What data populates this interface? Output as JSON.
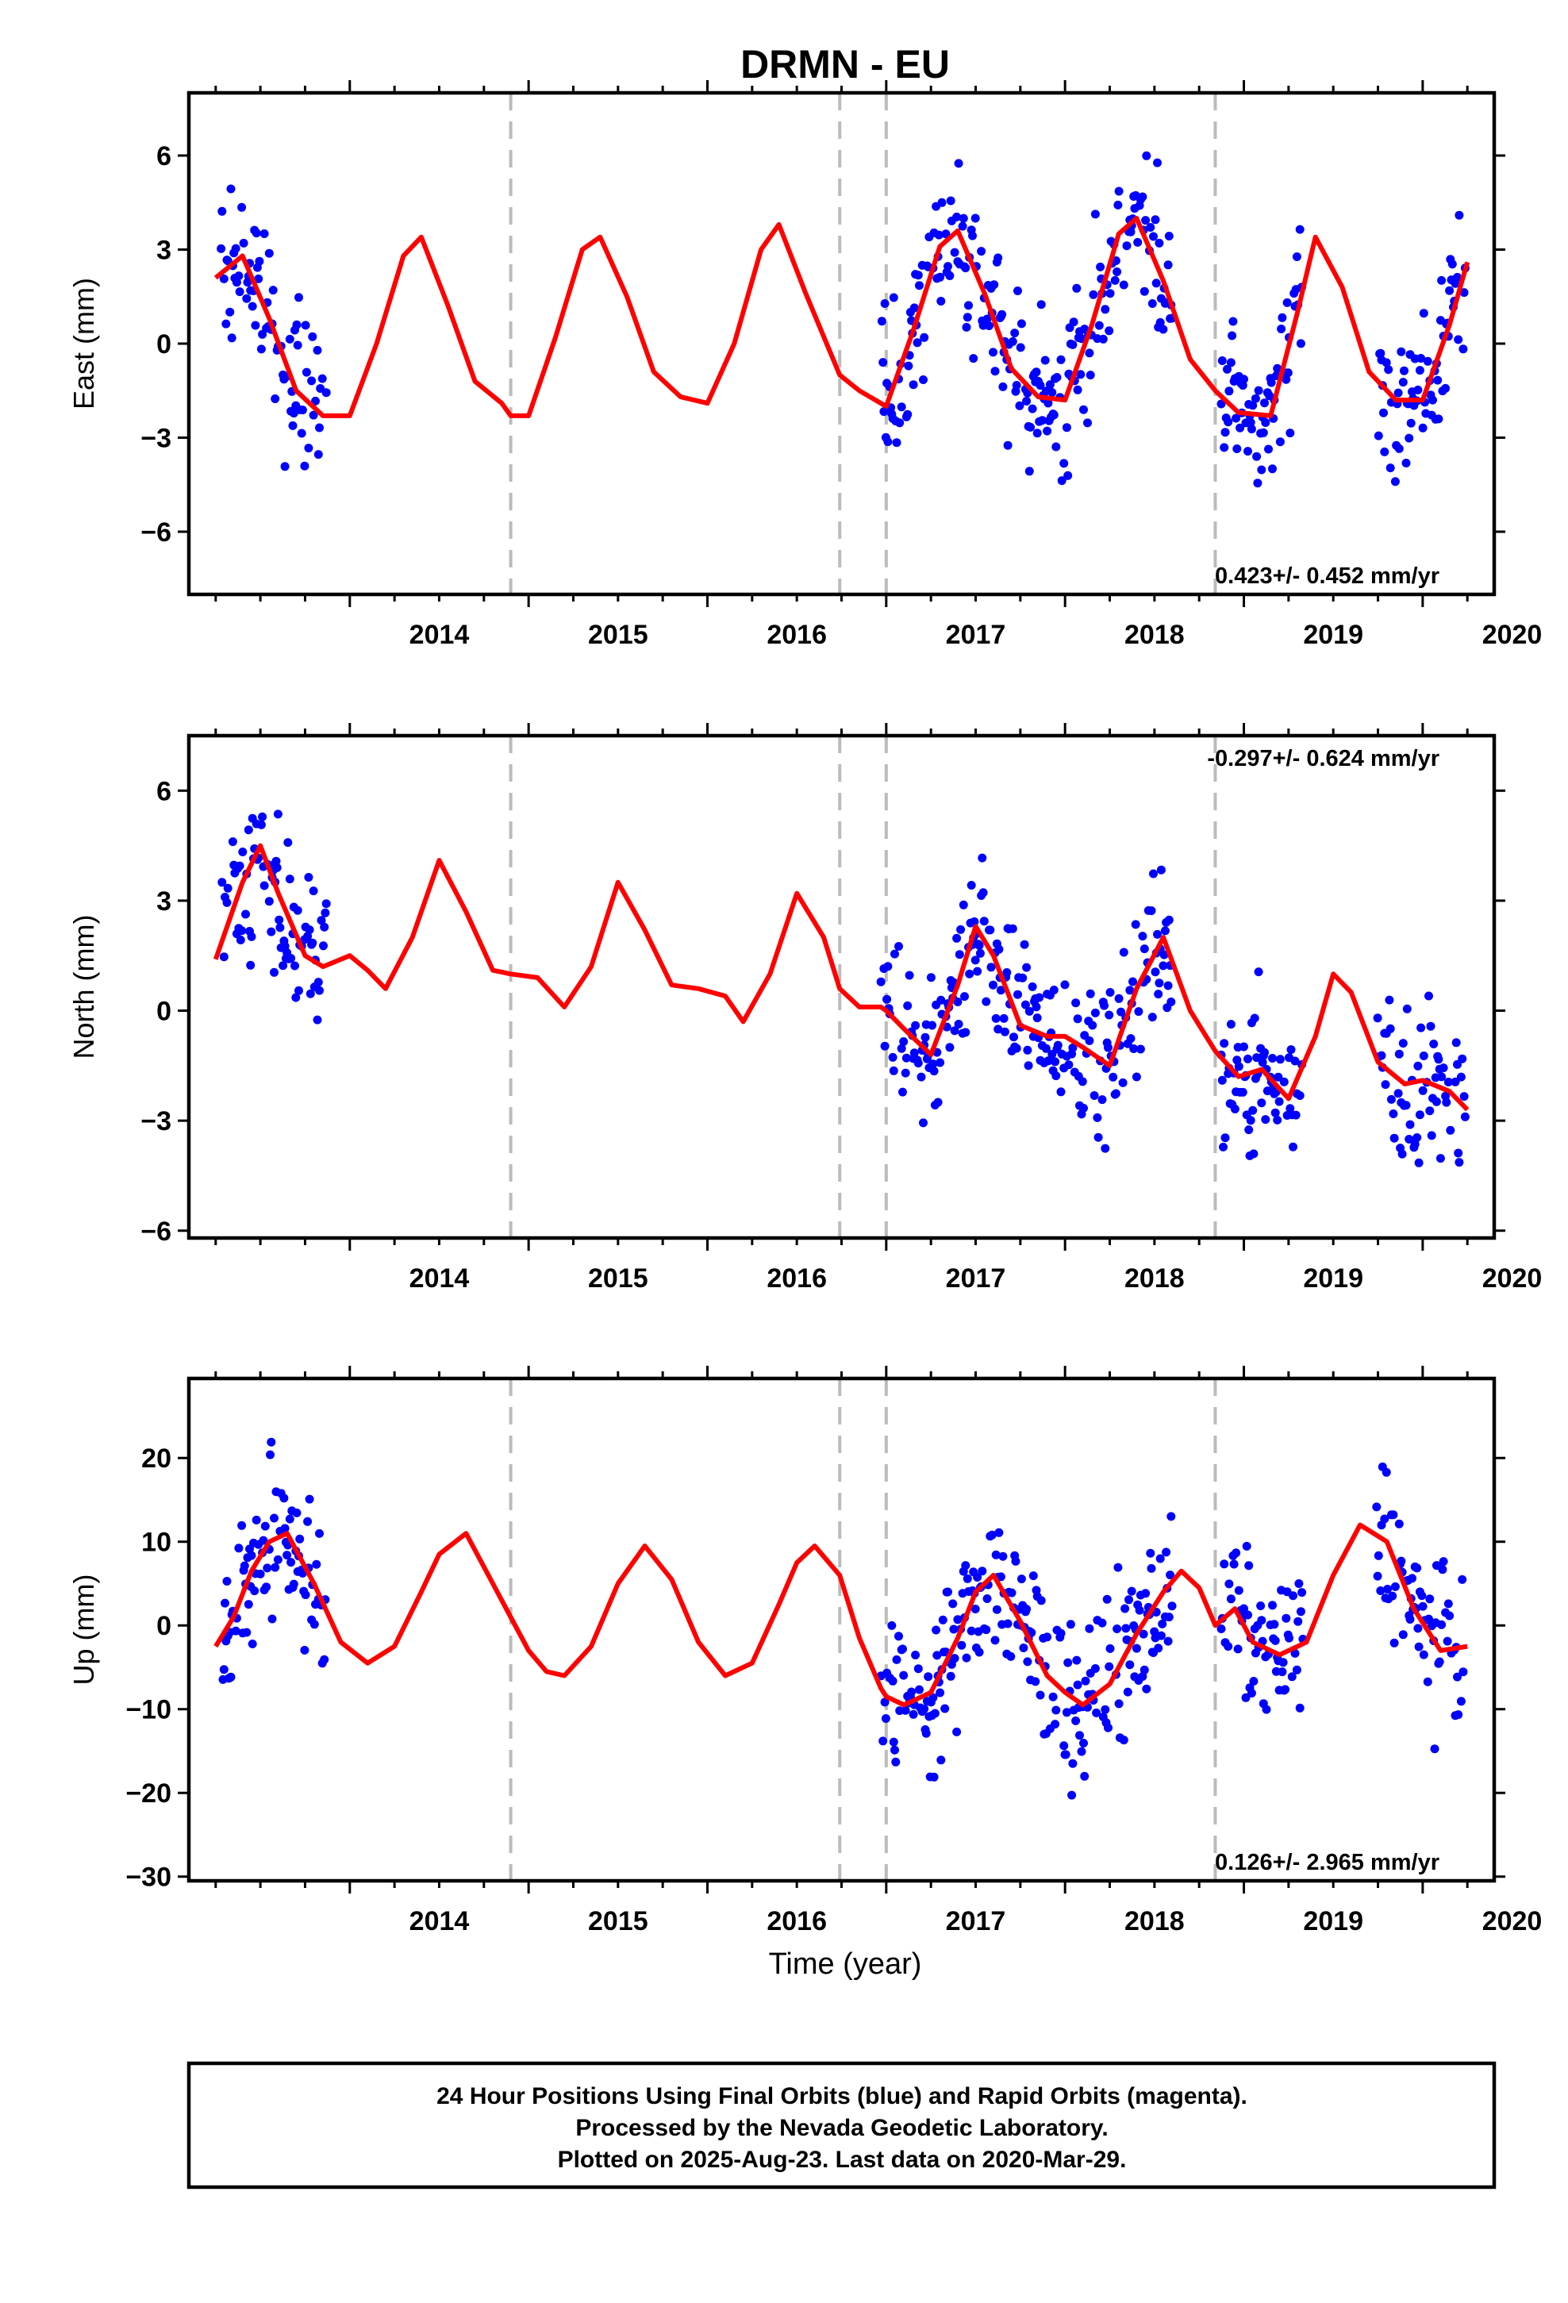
{
  "title": "DRMN - EU",
  "xlabel": "Time (year)",
  "footer": [
    "24 Hour Positions Using Final Orbits (blue) and Rapid Orbits (magenta).",
    "Processed by the Nevada Geodetic Laboratory.",
    "Plotted on 2025-Aug-23. Last data on 2020-Mar-29."
  ],
  "colors": {
    "points": "#0000ff",
    "model": "#ff0000",
    "offsets": "#bbbbbb"
  },
  "chart_data": [
    {
      "type": "scatter",
      "component": "East",
      "ylabel": "East (mm)",
      "rate_text": "0.423+/- 0.452 mm/yr",
      "xlim": [
        2013.1,
        2020.4
      ],
      "ylim": [
        -8,
        8
      ],
      "yticks": [
        6,
        3,
        0,
        -3,
        -6
      ],
      "yticklabels": [
        "6",
        "3",
        "0",
        "−3",
        "−6"
      ],
      "xticks": [
        2014,
        2015,
        2016,
        2017,
        2018,
        2019,
        2020
      ],
      "xticklabels": [
        "2014",
        "2015",
        "2016",
        "2017",
        "2018",
        "2019",
        "2020"
      ],
      "offset_lines": [
        2014.9,
        2016.74,
        2017.0,
        2018.84
      ],
      "data_gaps": [
        [
          2013.87,
          2016.97
        ],
        [
          2018.6,
          2018.87
        ],
        [
          2019.33,
          2019.74
        ]
      ],
      "model": {
        "x": [
          2013.25,
          2013.4,
          2013.55,
          2013.7,
          2013.85,
          2014.0,
          2014.15,
          2014.3,
          2014.4,
          2014.55,
          2014.7,
          2014.85,
          2014.9,
          2015.0,
          2015.15,
          2015.3,
          2015.4,
          2015.55,
          2015.7,
          2015.85,
          2016.0,
          2016.15,
          2016.3,
          2016.4,
          2016.55,
          2016.74,
          2016.85,
          2016.97,
          2017.0,
          2017.15,
          2017.3,
          2017.4,
          2017.55,
          2017.7,
          2017.85,
          2018.0,
          2018.15,
          2018.3,
          2018.4,
          2018.55,
          2018.7,
          2018.84,
          2018.97,
          2019.15,
          2019.3,
          2019.4,
          2019.55,
          2019.7,
          2019.85,
          2020.0,
          2020.15,
          2020.25
        ],
        "y": [
          2.1,
          2.8,
          0.8,
          -1.5,
          -2.3,
          -2.3,
          0.0,
          2.8,
          3.4,
          1.2,
          -1.2,
          -1.9,
          -2.3,
          -2.3,
          0.2,
          3.0,
          3.4,
          1.5,
          -0.9,
          -1.7,
          -1.9,
          0.0,
          3.0,
          3.8,
          1.6,
          -1.0,
          -1.5,
          -1.9,
          -2.0,
          0.4,
          3.1,
          3.6,
          1.6,
          -0.8,
          -1.7,
          -1.8,
          0.6,
          3.5,
          4.0,
          2.0,
          -0.5,
          -1.5,
          -2.2,
          -2.3,
          1.0,
          3.4,
          1.8,
          -0.9,
          -1.8,
          -1.8,
          0.6,
          2.6
        ]
      }
    },
    {
      "type": "scatter",
      "component": "North",
      "ylabel": "North (mm)",
      "rate_text": "-0.297+/- 0.624 mm/yr",
      "xlim": [
        2013.1,
        2020.4
      ],
      "ylim": [
        -6.2,
        7.5
      ],
      "yticks": [
        6,
        3,
        0,
        -3,
        -6
      ],
      "yticklabels": [
        "6",
        "3",
        "0",
        "−3",
        "−6"
      ],
      "xticks": [
        2014,
        2015,
        2016,
        2017,
        2018,
        2019,
        2020
      ],
      "xticklabels": [
        "2014",
        "2015",
        "2016",
        "2017",
        "2018",
        "2019",
        "2020"
      ],
      "offset_lines": [
        2014.9,
        2016.74,
        2017.0,
        2018.84
      ],
      "data_gaps": [
        [
          2013.87,
          2016.97
        ],
        [
          2018.6,
          2018.87
        ],
        [
          2019.33,
          2019.74
        ]
      ],
      "model": {
        "x": [
          2013.25,
          2013.4,
          2013.5,
          2013.6,
          2013.75,
          2013.85,
          2014.0,
          2014.1,
          2014.2,
          2014.35,
          2014.5,
          2014.65,
          2014.8,
          2014.9,
          2015.05,
          2015.2,
          2015.35,
          2015.5,
          2015.65,
          2015.8,
          2015.95,
          2016.1,
          2016.2,
          2016.35,
          2016.5,
          2016.65,
          2016.74,
          2016.85,
          2016.97,
          2017.0,
          2017.1,
          2017.25,
          2017.4,
          2017.5,
          2017.6,
          2017.75,
          2017.9,
          2018.0,
          2018.1,
          2018.25,
          2018.4,
          2018.55,
          2018.7,
          2018.84,
          2018.97,
          2019.1,
          2019.25,
          2019.4,
          2019.5,
          2019.6,
          2019.75,
          2019.9,
          2020.0,
          2020.15,
          2020.25
        ],
        "y": [
          1.4,
          3.5,
          4.5,
          3.2,
          1.5,
          1.2,
          1.5,
          1.1,
          0.6,
          2.0,
          4.1,
          2.7,
          1.1,
          1.0,
          0.9,
          0.1,
          1.2,
          3.5,
          2.2,
          0.7,
          0.6,
          0.4,
          -0.3,
          1.0,
          3.2,
          2.0,
          0.6,
          0.1,
          0.1,
          0.0,
          -0.5,
          -1.2,
          0.7,
          2.3,
          1.5,
          -0.4,
          -0.7,
          -0.7,
          -1.0,
          -1.5,
          0.6,
          2.0,
          0.0,
          -1.1,
          -1.8,
          -1.6,
          -2.4,
          -0.7,
          1.0,
          0.5,
          -1.4,
          -2.0,
          -1.9,
          -2.2,
          -2.7
        ]
      }
    },
    {
      "type": "scatter",
      "component": "Up",
      "ylabel": "Up (mm)",
      "rate_text": "0.126+/- 2.965 mm/yr",
      "xlim": [
        2013.1,
        2020.4
      ],
      "ylim": [
        -30.5,
        29.5
      ],
      "yticks": [
        20,
        10,
        0,
        -10,
        -20,
        -30
      ],
      "yticklabels": [
        "20",
        "10",
        "0",
        "−10",
        "−20",
        "−30"
      ],
      "xticks": [
        2014,
        2015,
        2016,
        2017,
        2018,
        2019,
        2020
      ],
      "xticklabels": [
        "2014",
        "2015",
        "2016",
        "2017",
        "2018",
        "2019",
        "2020"
      ],
      "offset_lines": [
        2014.9,
        2016.74,
        2017.0,
        2018.84
      ],
      "data_gaps": [
        [
          2013.87,
          2016.97
        ],
        [
          2018.6,
          2018.87
        ],
        [
          2019.33,
          2019.74
        ]
      ],
      "model": {
        "x": [
          2013.25,
          2013.35,
          2013.45,
          2013.55,
          2013.65,
          2013.8,
          2013.95,
          2014.1,
          2014.25,
          2014.4,
          2014.5,
          2014.65,
          2014.8,
          2014.9,
          2015.0,
          2015.1,
          2015.2,
          2015.35,
          2015.5,
          2015.65,
          2015.8,
          2015.95,
          2016.1,
          2016.25,
          2016.4,
          2016.5,
          2016.6,
          2016.74,
          2016.85,
          2016.97,
          2017.0,
          2017.1,
          2017.25,
          2017.4,
          2017.5,
          2017.6,
          2017.75,
          2017.9,
          2018.0,
          2018.1,
          2018.25,
          2018.4,
          2018.55,
          2018.65,
          2018.75,
          2018.84,
          2018.95,
          2019.05,
          2019.2,
          2019.35,
          2019.5,
          2019.65,
          2019.8,
          2019.95,
          2020.1,
          2020.25
        ],
        "y": [
          -2.5,
          1.0,
          6.5,
          10.0,
          11.0,
          5.0,
          -2.0,
          -4.5,
          -2.5,
          4.0,
          8.5,
          11.0,
          5.0,
          1.0,
          -3.0,
          -5.5,
          -6.0,
          -2.5,
          5.0,
          9.5,
          5.5,
          -2.0,
          -6.0,
          -4.5,
          2.5,
          7.5,
          9.5,
          6.0,
          -1.5,
          -7.5,
          -8.5,
          -9.5,
          -8.0,
          -1.5,
          4.0,
          6.0,
          0.5,
          -6.0,
          -8.0,
          -9.5,
          -7.0,
          -1.0,
          4.0,
          6.5,
          4.5,
          0.0,
          2.0,
          -2.0,
          -3.5,
          -2.0,
          6.0,
          12.0,
          10.0,
          2.0,
          -3.0,
          -2.5
        ]
      }
    }
  ]
}
